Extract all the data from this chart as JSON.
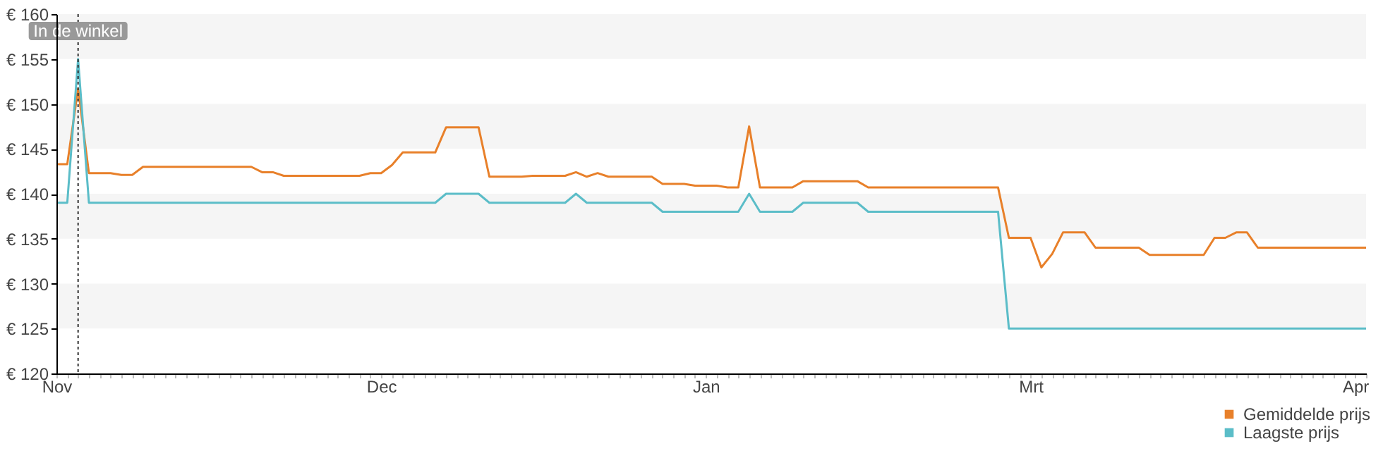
{
  "chart_data": {
    "type": "line",
    "legend": "bottom right",
    "grid": false,
    "marker": "none",
    "line_style": "solid",
    "categories": [
      "Nov",
      null,
      null,
      null,
      null,
      null,
      null,
      null,
      null,
      null,
      null,
      null,
      null,
      null,
      null,
      null,
      null,
      null,
      null,
      null,
      null,
      null,
      null,
      null,
      null,
      null,
      null,
      null,
      null,
      null,
      "Dec",
      null,
      null,
      null,
      null,
      null,
      null,
      null,
      null,
      null,
      null,
      null,
      null,
      null,
      null,
      null,
      null,
      null,
      null,
      null,
      null,
      null,
      null,
      null,
      null,
      null,
      null,
      null,
      null,
      null,
      "Jan",
      null,
      null,
      null,
      null,
      null,
      null,
      null,
      null,
      null,
      null,
      null,
      null,
      null,
      null,
      null,
      null,
      null,
      null,
      null,
      null,
      null,
      null,
      null,
      null,
      null,
      null,
      null,
      null,
      null,
      "Mrt",
      null,
      null,
      null,
      null,
      null,
      null,
      null,
      null,
      null,
      null,
      null,
      null,
      null,
      null,
      null,
      null,
      null,
      null,
      null,
      null,
      null,
      null,
      null,
      null,
      null,
      null,
      null,
      null,
      null,
      "Apr",
      null
    ],
    "ylim": [
      120,
      160
    ],
    "yticks": [
      {
        "value": 120,
        "label": "€ 120"
      },
      {
        "value": 125,
        "label": "€ 125"
      },
      {
        "value": 130,
        "label": "€ 130"
      },
      {
        "value": 135,
        "label": "€ 135"
      },
      {
        "value": 140,
        "label": "€ 140"
      },
      {
        "value": 145,
        "label": "€ 145"
      },
      {
        "value": 150,
        "label": "€ 150"
      },
      {
        "value": 155,
        "label": "€ 155"
      },
      {
        "value": 160,
        "label": "€ 160"
      }
    ],
    "bands": [
      {
        "axis": "y",
        "from": 125,
        "to": 130,
        "color": "#f5f5f5"
      },
      {
        "axis": "y",
        "from": 135,
        "to": 140,
        "color": "#f5f5f5"
      },
      {
        "axis": "y",
        "from": 145,
        "to": 150,
        "color": "#f5f5f5"
      },
      {
        "axis": "y",
        "from": 155,
        "to": 160,
        "color": "#f5f5f5"
      }
    ],
    "annotations": [
      "In de winkel"
    ],
    "series": [
      {
        "name": "Gemiddelde prijs",
        "color": "#e8802a",
        "values": [
          143.3,
          143.3,
          151.7,
          142.3,
          142.3,
          142.3,
          142.1,
          142.1,
          143,
          143,
          143,
          143,
          143,
          143,
          143,
          143,
          143,
          143,
          143,
          142.4,
          142.4,
          142,
          142,
          142,
          142,
          142,
          142,
          142,
          142,
          142.3,
          142.3,
          143.2,
          144.6,
          144.6,
          144.6,
          144.6,
          147.4,
          147.4,
          147.4,
          147.4,
          141.9,
          141.9,
          141.9,
          141.9,
          142,
          142,
          142,
          142,
          142.4,
          141.9,
          142.3,
          141.9,
          141.9,
          141.9,
          141.9,
          141.9,
          141.1,
          141.1,
          141.1,
          140.9,
          140.9,
          140.9,
          140.7,
          140.7,
          147.5,
          140.7,
          140.7,
          140.7,
          140.7,
          141.4,
          141.4,
          141.4,
          141.4,
          141.4,
          141.4,
          140.7,
          140.7,
          140.7,
          140.7,
          140.7,
          140.7,
          140.7,
          140.7,
          140.7,
          140.7,
          140.7,
          140.7,
          140.7,
          135.1,
          135.1,
          135.1,
          131.8,
          133.3,
          135.7,
          135.7,
          135.7,
          134,
          134,
          134,
          134,
          134,
          133.2,
          133.2,
          133.2,
          133.2,
          133.2,
          133.2,
          135.1,
          135.1,
          135.7,
          135.7,
          134,
          134,
          134,
          134,
          134,
          134,
          134,
          134,
          134,
          134,
          134
        ]
      },
      {
        "name": "Laagste prijs",
        "color": "#5bbdc8",
        "values": [
          139,
          139,
          155,
          139,
          139,
          139,
          139,
          139,
          139,
          139,
          139,
          139,
          139,
          139,
          139,
          139,
          139,
          139,
          139,
          139,
          139,
          139,
          139,
          139,
          139,
          139,
          139,
          139,
          139,
          139,
          139,
          139,
          139,
          139,
          139,
          139,
          140,
          140,
          140,
          140,
          139,
          139,
          139,
          139,
          139,
          139,
          139,
          139,
          140,
          139,
          139,
          139,
          139,
          139,
          139,
          139,
          138,
          138,
          138,
          138,
          138,
          138,
          138,
          138,
          140,
          138,
          138,
          138,
          138,
          139,
          139,
          139,
          139,
          139,
          139,
          138,
          138,
          138,
          138,
          138,
          138,
          138,
          138,
          138,
          138,
          138,
          138,
          138,
          125,
          125,
          125,
          125,
          125,
          125,
          125,
          125,
          125,
          125,
          125,
          125,
          125,
          125,
          125,
          125,
          125,
          125,
          125,
          125,
          125,
          125,
          125,
          125,
          125,
          125,
          125,
          125,
          125,
          125,
          125,
          125,
          125,
          125
        ]
      }
    ]
  }
}
